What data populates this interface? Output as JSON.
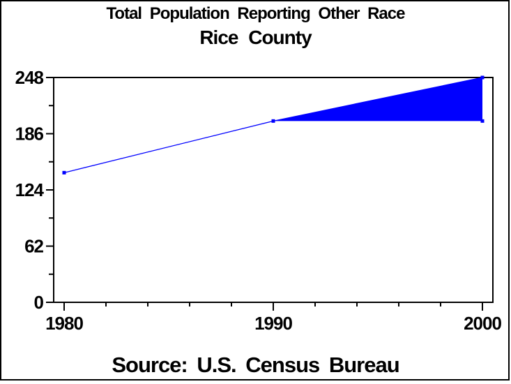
{
  "chart_data": {
    "type": "area",
    "title": "Total Population Reporting Other Race",
    "subtitle": "Rice County",
    "source": "Source: U.S. Census Bureau",
    "x": [
      1980,
      1990,
      2000
    ],
    "series": [
      {
        "name": "population-reporting-other-race",
        "values": [
          143,
          200,
          248
        ]
      }
    ],
    "area_band": {
      "x_start": 1990,
      "x_end": 2000,
      "baseline": 200
    },
    "xlim": [
      1980,
      2000
    ],
    "ylim": [
      0,
      248
    ],
    "x_ticks": [
      1980,
      1990,
      2000
    ],
    "x_tick_labels": [
      "1980",
      "1990",
      "2000"
    ],
    "x_minor_step": 2,
    "y_ticks": [
      0,
      62,
      124,
      186,
      248
    ],
    "y_tick_labels": [
      "0",
      "62",
      "124",
      "186",
      "248"
    ],
    "y_minor_ticks": [
      31,
      93,
      155,
      217
    ],
    "grid": false,
    "legend": "none",
    "colors": {
      "line": "#0000FF",
      "fill": "#0000FF",
      "marker": "#0000FF",
      "axis": "#000000",
      "text": "#000000",
      "background": "#FFFFFF"
    }
  }
}
